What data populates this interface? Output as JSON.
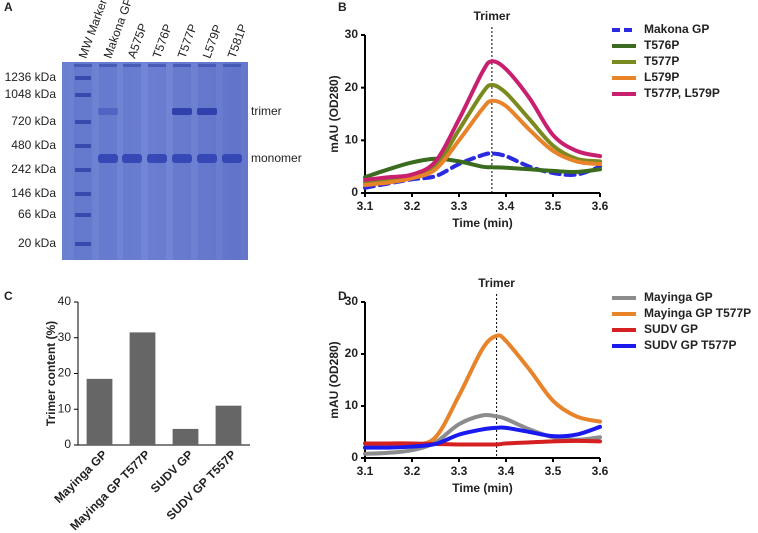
{
  "gel": {
    "panel": "A",
    "lanes": [
      "MW Marker",
      "Makona GP",
      "A575P",
      "T576P",
      "T577P",
      "L579P",
      "T581P"
    ],
    "markers": [
      "1236 kDa",
      "1048 kDa",
      "720 kDa",
      "480 kDa",
      "242 kDa",
      "146 kDa",
      "66 kDa",
      "20 kDa"
    ],
    "bands": [
      "trimer",
      "monomer"
    ]
  },
  "chart_data": [
    {
      "type": "line",
      "panel": "B",
      "xlabel": "Time (min)",
      "ylabel": "mAU (OD280)",
      "annotation": "Trimer",
      "marker_x": 3.37,
      "x": [
        3.1,
        3.15,
        3.2,
        3.25,
        3.3,
        3.35,
        3.37,
        3.4,
        3.45,
        3.5,
        3.55,
        3.6
      ],
      "xlim": [
        3.1,
        3.6
      ],
      "xticks": [
        3.1,
        3.2,
        3.3,
        3.4,
        3.5,
        3.6
      ],
      "ylim": [
        0,
        30
      ],
      "yticks": [
        0,
        10,
        20,
        30
      ],
      "legend": "outside-right",
      "series": [
        {
          "name": "Makona GP",
          "color": "#2a2ae0",
          "dash": true,
          "values": [
            1,
            1.8,
            2.6,
            3.2,
            5.5,
            7.2,
            7.5,
            7,
            5,
            3.8,
            3.5,
            5
          ]
        },
        {
          "name": "T576P",
          "color": "#3a6b1e",
          "values": [
            3,
            4.5,
            5.8,
            6.5,
            6,
            5,
            4.9,
            4.8,
            4.5,
            4.2,
            4,
            4.5
          ]
        },
        {
          "name": "T577P",
          "color": "#7a8a1e",
          "values": [
            2,
            2.5,
            3,
            5,
            12,
            19,
            20.5,
            19,
            14,
            9,
            6.5,
            6
          ]
        },
        {
          "name": "L579P",
          "color": "#e8832a",
          "values": [
            1.5,
            2,
            2.8,
            4.5,
            10,
            16,
            17.5,
            16.5,
            12,
            8,
            6,
            5.5
          ]
        },
        {
          "name": "T577P, L579P",
          "color": "#c8206e",
          "values": [
            2.5,
            3,
            3.5,
            6,
            14,
            23,
            25,
            23.5,
            18,
            11,
            8,
            7
          ]
        }
      ]
    },
    {
      "type": "bar",
      "panel": "C",
      "ylabel": "Trimer content (%)",
      "categories": [
        "Mayinga GP",
        "Mayinga GP T577P",
        "SUDV GP",
        "SUDV GP T557P"
      ],
      "values": [
        18.5,
        31.5,
        4.5,
        11
      ],
      "color": "#666666",
      "ylim": [
        0,
        40
      ],
      "yticks": [
        0,
        10,
        20,
        30,
        40
      ]
    },
    {
      "type": "line",
      "panel": "D",
      "xlabel": "Time (min)",
      "ylabel": "mAU (OD280)",
      "annotation": "Trimer",
      "marker_x": 3.38,
      "x": [
        3.1,
        3.15,
        3.2,
        3.25,
        3.3,
        3.35,
        3.38,
        3.4,
        3.45,
        3.5,
        3.55,
        3.6
      ],
      "xlim": [
        3.1,
        3.6
      ],
      "xticks": [
        3.1,
        3.2,
        3.3,
        3.4,
        3.5,
        3.6
      ],
      "ylim": [
        0,
        30
      ],
      "yticks": [
        0,
        10,
        20,
        30
      ],
      "legend": "outside-right",
      "series": [
        {
          "name": "Mayinga  GP",
          "color": "#8c8c8c",
          "values": [
            0.8,
            1,
            1.5,
            3,
            6.5,
            8.2,
            8,
            7.5,
            5.5,
            4,
            3.5,
            4
          ]
        },
        {
          "name": "Mayinga GP  T577P",
          "color": "#e8832a",
          "values": [
            2,
            2.2,
            2.5,
            4,
            12,
            21,
            23.5,
            22.5,
            17,
            11,
            8,
            7
          ]
        },
        {
          "name": "SUDV  GP",
          "color": "#d42020",
          "values": [
            2.8,
            2.8,
            2.8,
            2.7,
            2.6,
            2.6,
            2.6,
            2.8,
            3,
            3.2,
            3.3,
            3.2
          ]
        },
        {
          "name": "SUDV  GP  T577P",
          "color": "#1a1aee",
          "values": [
            2,
            2,
            2.2,
            2.7,
            4.5,
            5.5,
            5.8,
            5.8,
            5,
            4.2,
            4.5,
            6
          ]
        }
      ]
    }
  ]
}
